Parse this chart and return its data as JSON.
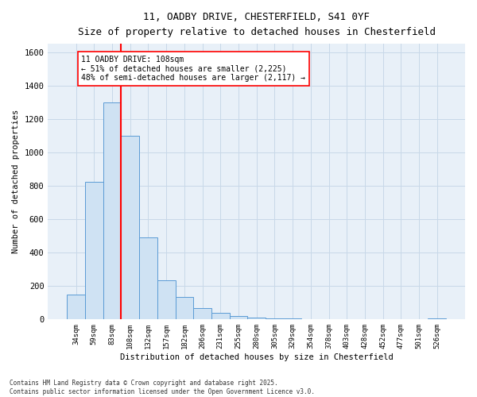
{
  "title_line1": "11, OADBY DRIVE, CHESTERFIELD, S41 0YF",
  "title_line2": "Size of property relative to detached houses in Chesterfield",
  "xlabel": "Distribution of detached houses by size in Chesterfield",
  "ylabel": "Number of detached properties",
  "categories": [
    "34sqm",
    "59sqm",
    "83sqm",
    "108sqm",
    "132sqm",
    "157sqm",
    "182sqm",
    "206sqm",
    "231sqm",
    "255sqm",
    "280sqm",
    "305sqm",
    "329sqm",
    "354sqm",
    "378sqm",
    "403sqm",
    "428sqm",
    "452sqm",
    "477sqm",
    "501sqm",
    "526sqm"
  ],
  "values": [
    150,
    825,
    1300,
    1100,
    490,
    235,
    135,
    70,
    38,
    22,
    10,
    8,
    5,
    2,
    1,
    1,
    0,
    0,
    0,
    0,
    5
  ],
  "bar_color": "#cfe2f3",
  "bar_edge_color": "#5b9bd5",
  "grid_color": "#c8d8e8",
  "background_color": "#e8f0f8",
  "red_line_index": 3,
  "annotation_text": "11 OADBY DRIVE: 108sqm\n← 51% of detached houses are smaller (2,225)\n48% of semi-detached houses are larger (2,117) →",
  "footnote1": "Contains HM Land Registry data © Crown copyright and database right 2025.",
  "footnote2": "Contains public sector information licensed under the Open Government Licence v3.0.",
  "ylim": [
    0,
    1650
  ],
  "yticks": [
    0,
    200,
    400,
    600,
    800,
    1000,
    1200,
    1400,
    1600
  ]
}
